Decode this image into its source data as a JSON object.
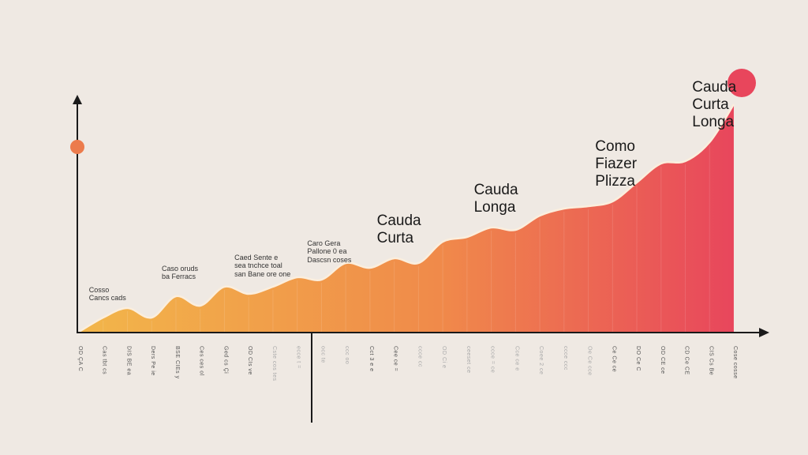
{
  "chart_data": {
    "type": "area",
    "title": "",
    "xlabel": "",
    "ylabel": "",
    "ylim": [
      0,
      110
    ],
    "x": [
      0,
      1,
      2,
      3,
      4,
      5,
      6,
      7,
      8,
      9,
      10,
      11,
      12,
      13,
      14,
      15,
      16,
      17,
      18,
      19,
      20,
      21,
      22,
      23,
      24,
      25,
      26,
      27
    ],
    "values": [
      0,
      6,
      10,
      6,
      15,
      11,
      19,
      16,
      19,
      23,
      22,
      29,
      27,
      31,
      29,
      38,
      40,
      44,
      43,
      49,
      52,
      53,
      55,
      63,
      71,
      72,
      80,
      96
    ],
    "end_marker_value": 105,
    "y_axis_marker_value": 78,
    "gradient": [
      "#f2b64a",
      "#f08a4a",
      "#e8465c"
    ],
    "annotations": [
      {
        "text": [
          "Cosso",
          "Cancs cads"
        ],
        "x": 1,
        "size": "small"
      },
      {
        "text": [
          "Caso oruds",
          "ba Ferracs"
        ],
        "x": 4,
        "size": "small"
      },
      {
        "text": [
          "Caed Sente e",
          "sea tnchce toal",
          "san Bane ore one"
        ],
        "x": 7,
        "size": "small"
      },
      {
        "text": [
          "Caro Gera",
          "Pallone 0 ea",
          "Dascsn coses"
        ],
        "x": 10,
        "size": "small"
      },
      {
        "text": [
          "Cauda",
          "Curta"
        ],
        "x": 13,
        "size": "big"
      },
      {
        "text": [
          "Cauda",
          "Longa"
        ],
        "x": 17,
        "size": "big"
      },
      {
        "text": [
          "Como",
          "Fiazer",
          "Plizza"
        ],
        "x": 22,
        "size": "big"
      },
      {
        "text": [
          "Cauda",
          "Curta",
          "Longa"
        ],
        "x": 26,
        "size": "big"
      }
    ],
    "tick_labels": [
      "OD ÇA C",
      "Cas tbt cs",
      "DIS BE ea",
      "Ders Pe ie",
      "BSE CIEs y",
      "Ces ces ol",
      "Ged cs Çi",
      "OD CIs ve",
      "Cste cos tes",
      "ecce t =",
      "occ te",
      "ccc oo",
      "Cct 3 e e",
      "Cee ce =",
      "ccce cc",
      "OD Ci e",
      "ceeset ce",
      "ccce = ce",
      "Cce ce e",
      "Coee 2 ce",
      "ccce ccc",
      "Oe Ce cce",
      "Ce Ce ce",
      "DO Ce C",
      "OD CE ce",
      "CD Ce CE",
      "CIS Cs Be",
      "Cose cosse"
    ],
    "grid": false,
    "legend": "none"
  }
}
